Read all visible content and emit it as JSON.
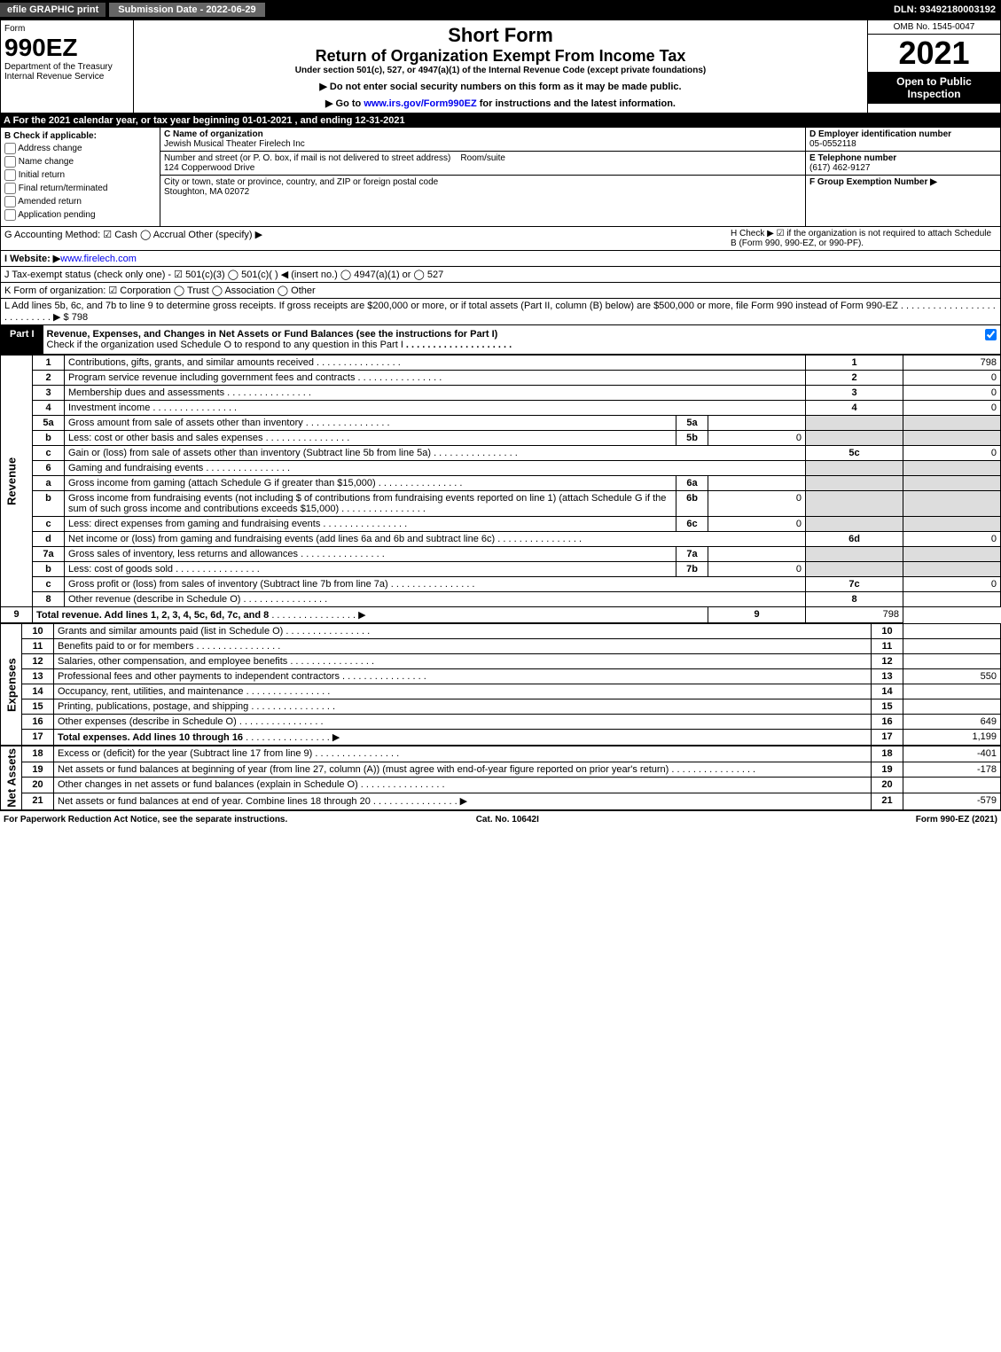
{
  "topbar": {
    "efile": "efile GRAPHIC print",
    "subdate_lbl": "Submission Date - 2022-06-29",
    "dln": "DLN: 93492180003192"
  },
  "header": {
    "form_word": "Form",
    "form_num": "990EZ",
    "dept": "Department of the Treasury",
    "irs": "Internal Revenue Service",
    "short_form": "Short Form",
    "title": "Return of Organization Exempt From Income Tax",
    "subtitle": "Under section 501(c), 527, or 4947(a)(1) of the Internal Revenue Code (except private foundations)",
    "note1": "▶ Do not enter social security numbers on this form as it may be made public.",
    "note2": "▶ Go to www.irs.gov/Form990EZ for instructions and the latest information.",
    "omb": "OMB No. 1545-0047",
    "year": "2021",
    "open": "Open to Public Inspection"
  },
  "A": "A  For the 2021 calendar year, or tax year beginning 01-01-2021 , and ending 12-31-2021",
  "B": {
    "hdr": "B  Check if applicable:",
    "items": [
      "Address change",
      "Name change",
      "Initial return",
      "Final return/terminated",
      "Amended return",
      "Application pending"
    ]
  },
  "C": {
    "lbl": "C Name of organization",
    "name": "Jewish Musical Theater Firelech Inc",
    "addr_lbl": "Number and street (or P. O. box, if mail is not delivered to street address)",
    "room_lbl": "Room/suite",
    "addr": "124 Copperwood Drive",
    "city_lbl": "City or town, state or province, country, and ZIP or foreign postal code",
    "city": "Stoughton, MA  02072"
  },
  "D": {
    "lbl": "D Employer identification number",
    "val": "05-0552118"
  },
  "E": {
    "lbl": "E Telephone number",
    "val": "(617) 462-9127"
  },
  "F": {
    "lbl": "F Group Exemption Number  ▶"
  },
  "G": "G Accounting Method:  ☑ Cash  ◯ Accrual  Other (specify) ▶",
  "H": "H  Check ▶ ☑ if the organization is not required to attach Schedule B (Form 990, 990-EZ, or 990-PF).",
  "I": {
    "lbl": "I Website: ▶",
    "val": "www.firelech.com"
  },
  "J": "J Tax-exempt status (check only one) - ☑ 501(c)(3)  ◯ 501(c)(  ) ◀ (insert no.)  ◯ 4947(a)(1) or  ◯ 527",
  "K": "K Form of organization:  ☑ Corporation  ◯ Trust  ◯ Association  ◯ Other",
  "L": {
    "text": "L Add lines 5b, 6c, and 7b to line 9 to determine gross receipts. If gross receipts are $200,000 or more, or if total assets (Part II, column (B) below) are $500,000 or more, file Form 990 instead of Form 990-EZ",
    "amt": "▶ $ 798"
  },
  "partI": {
    "num": "Part I",
    "title": "Revenue, Expenses, and Changes in Net Assets or Fund Balances (see the instructions for Part I)",
    "sub": "Check if the organization used Schedule O to respond to any question in this Part I"
  },
  "sections": {
    "rev": "Revenue",
    "exp": "Expenses",
    "na": "Net Assets"
  },
  "lines": [
    {
      "n": "1",
      "t": "Contributions, gifts, grants, and similar amounts received",
      "nc": "1",
      "amt": "798"
    },
    {
      "n": "2",
      "t": "Program service revenue including government fees and contracts",
      "nc": "2",
      "amt": "0"
    },
    {
      "n": "3",
      "t": "Membership dues and assessments",
      "nc": "3",
      "amt": "0"
    },
    {
      "n": "4",
      "t": "Investment income",
      "nc": "4",
      "amt": "0"
    },
    {
      "n": "5a",
      "t": "Gross amount from sale of assets other than inventory",
      "mid_n": "5a",
      "mid_v": ""
    },
    {
      "n": "b",
      "t": "Less: cost or other basis and sales expenses",
      "mid_n": "5b",
      "mid_v": "0"
    },
    {
      "n": "c",
      "t": "Gain or (loss) from sale of assets other than inventory (Subtract line 5b from line 5a)",
      "nc": "5c",
      "amt": "0"
    },
    {
      "n": "6",
      "t": "Gaming and fundraising events"
    },
    {
      "n": "a",
      "t": "Gross income from gaming (attach Schedule G if greater than $15,000)",
      "mid_n": "6a",
      "mid_v": ""
    },
    {
      "n": "b",
      "t": "Gross income from fundraising events (not including $            of contributions from fundraising events reported on line 1) (attach Schedule G if the sum of such gross income and contributions exceeds $15,000)",
      "mid_n": "6b",
      "mid_v": "0"
    },
    {
      "n": "c",
      "t": "Less: direct expenses from gaming and fundraising events",
      "mid_n": "6c",
      "mid_v": "0"
    },
    {
      "n": "d",
      "t": "Net income or (loss) from gaming and fundraising events (add lines 6a and 6b and subtract line 6c)",
      "nc": "6d",
      "amt": "0"
    },
    {
      "n": "7a",
      "t": "Gross sales of inventory, less returns and allowances",
      "mid_n": "7a",
      "mid_v": ""
    },
    {
      "n": "b",
      "t": "Less: cost of goods sold",
      "mid_n": "7b",
      "mid_v": "0"
    },
    {
      "n": "c",
      "t": "Gross profit or (loss) from sales of inventory (Subtract line 7b from line 7a)",
      "nc": "7c",
      "amt": "0"
    },
    {
      "n": "8",
      "t": "Other revenue (describe in Schedule O)",
      "nc": "8",
      "amt": ""
    },
    {
      "n": "9",
      "t": "Total revenue. Add lines 1, 2, 3, 4, 5c, 6d, 7c, and 8",
      "nc": "9",
      "amt": "798",
      "bold": true,
      "arrow": true
    }
  ],
  "exp_lines": [
    {
      "n": "10",
      "t": "Grants and similar amounts paid (list in Schedule O)",
      "nc": "10",
      "amt": ""
    },
    {
      "n": "11",
      "t": "Benefits paid to or for members",
      "nc": "11",
      "amt": ""
    },
    {
      "n": "12",
      "t": "Salaries, other compensation, and employee benefits",
      "nc": "12",
      "amt": ""
    },
    {
      "n": "13",
      "t": "Professional fees and other payments to independent contractors",
      "nc": "13",
      "amt": "550"
    },
    {
      "n": "14",
      "t": "Occupancy, rent, utilities, and maintenance",
      "nc": "14",
      "amt": ""
    },
    {
      "n": "15",
      "t": "Printing, publications, postage, and shipping",
      "nc": "15",
      "amt": ""
    },
    {
      "n": "16",
      "t": "Other expenses (describe in Schedule O)",
      "nc": "16",
      "amt": "649"
    },
    {
      "n": "17",
      "t": "Total expenses. Add lines 10 through 16",
      "nc": "17",
      "amt": "1,199",
      "bold": true,
      "arrow": true
    }
  ],
  "na_lines": [
    {
      "n": "18",
      "t": "Excess or (deficit) for the year (Subtract line 17 from line 9)",
      "nc": "18",
      "amt": "-401"
    },
    {
      "n": "19",
      "t": "Net assets or fund balances at beginning of year (from line 27, column (A)) (must agree with end-of-year figure reported on prior year's return)",
      "nc": "19",
      "amt": "-178"
    },
    {
      "n": "20",
      "t": "Other changes in net assets or fund balances (explain in Schedule O)",
      "nc": "20",
      "amt": ""
    },
    {
      "n": "21",
      "t": "Net assets or fund balances at end of year. Combine lines 18 through 20",
      "nc": "21",
      "amt": "-579",
      "arrow": true
    }
  ],
  "footer": {
    "l": "For Paperwork Reduction Act Notice, see the separate instructions.",
    "c": "Cat. No. 10642I",
    "r": "Form 990-EZ (2021)"
  }
}
